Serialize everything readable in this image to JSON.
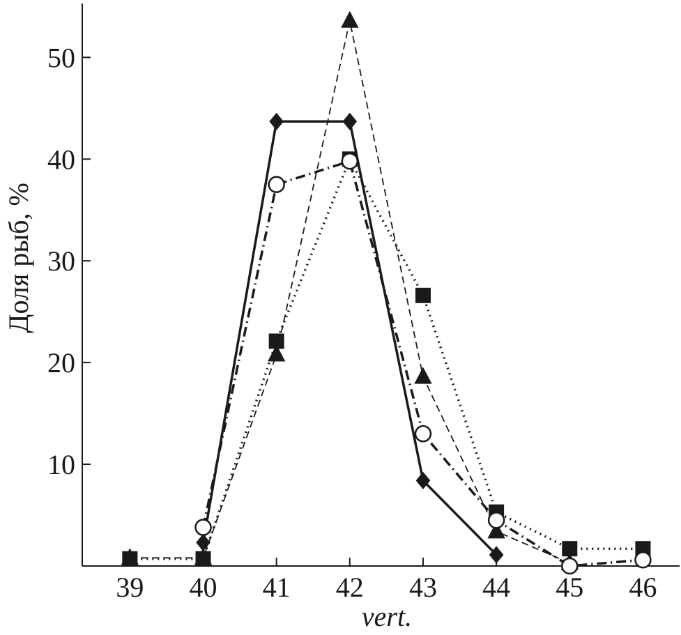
{
  "chart_data": {
    "type": "line",
    "x_label": "vert.",
    "y_label": "Доля рыб, %",
    "x": [
      39,
      40,
      41,
      42,
      43,
      44,
      45,
      46
    ],
    "xlim": [
      38.35,
      46.5
    ],
    "xticks": [
      39,
      40,
      41,
      42,
      43,
      44,
      45,
      46
    ],
    "ylim": [
      0,
      55.3
    ],
    "yticks": [
      10,
      20,
      30,
      40,
      50
    ],
    "series": [
      {
        "color": "#1a1a1a",
        "marker": "diamond",
        "dash": "solid",
        "values": [
          null,
          2.3,
          43.7,
          43.7,
          8.4,
          1.1,
          null,
          null
        ]
      },
      {
        "color": "#1a1a1a",
        "marker": "triangle",
        "dash": "dashed",
        "values": [
          0.8,
          0.8,
          20.8,
          53.6,
          18.6,
          3.4,
          0.3,
          null
        ]
      },
      {
        "color": "#1a1a1a",
        "marker": "square",
        "dash": "dotted",
        "values": [
          0.7,
          0.7,
          22.1,
          40.0,
          26.6,
          5.3,
          1.7,
          1.7
        ]
      },
      {
        "color": "#1a1a1a",
        "marker": "circle",
        "dash": "dashdot",
        "values": [
          null,
          3.8,
          37.5,
          39.8,
          13.0,
          4.5,
          0.0,
          0.6
        ]
      }
    ]
  }
}
